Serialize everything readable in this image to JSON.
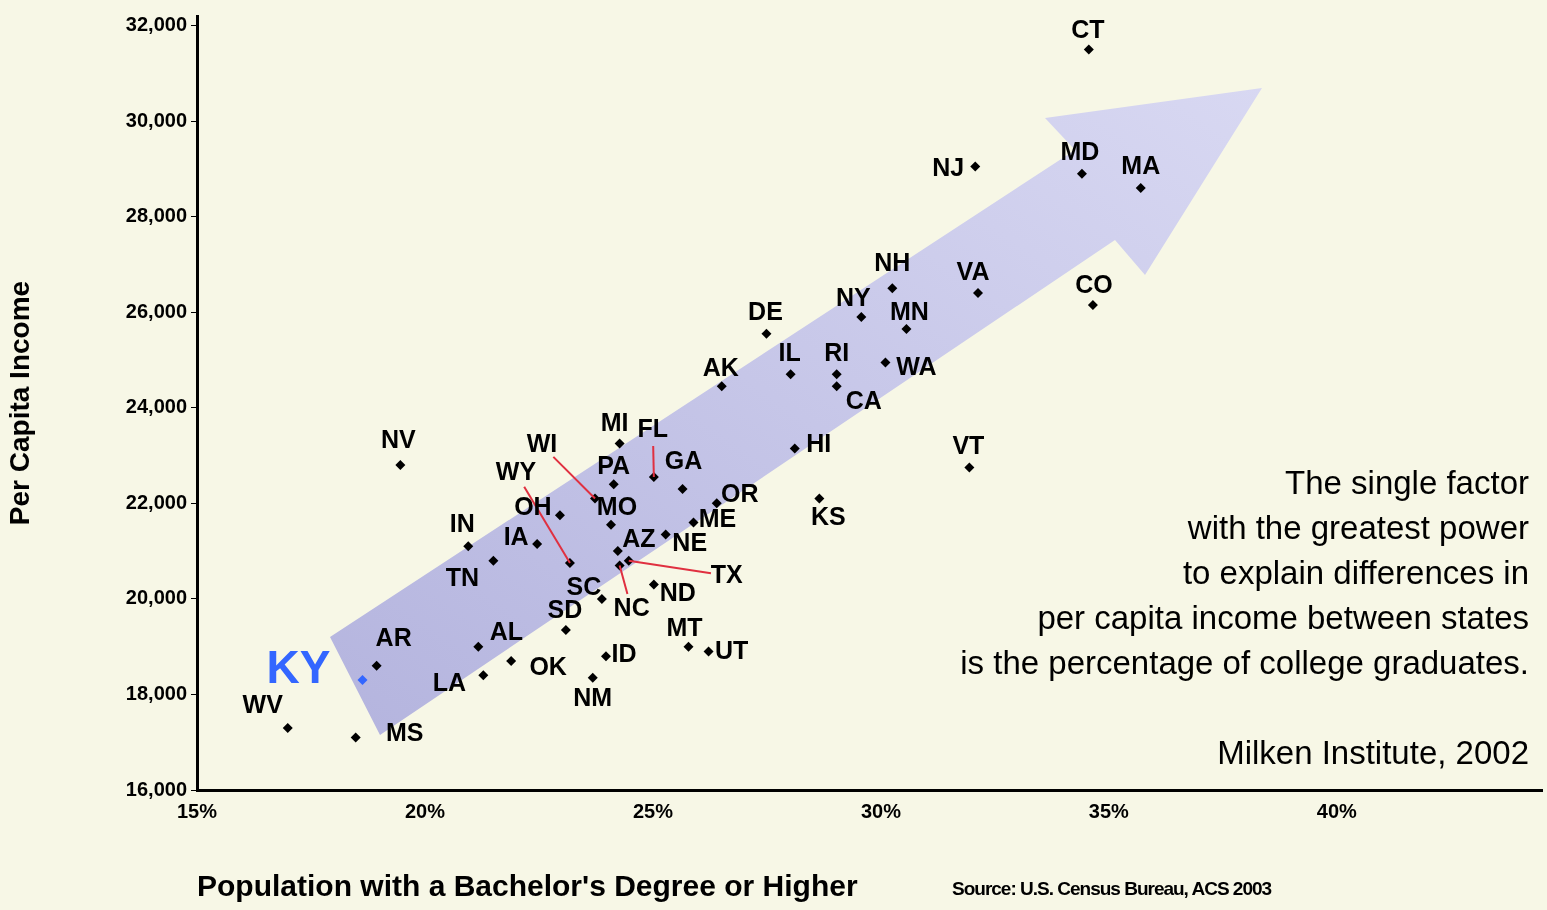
{
  "chart_data": {
    "type": "scatter",
    "xlabel": "Population with a Bachelor's Degree or Higher",
    "ylabel": "Per Capita Income",
    "xlim": [
      15,
      44.5
    ],
    "ylim": [
      16000,
      32200
    ],
    "xticks": [
      {
        "value": 15,
        "label": "15%"
      },
      {
        "value": 20,
        "label": "20%"
      },
      {
        "value": 25,
        "label": "25%"
      },
      {
        "value": 30,
        "label": "30%"
      },
      {
        "value": 35,
        "label": "35%"
      },
      {
        "value": 40,
        "label": "40%"
      }
    ],
    "yticks": [
      {
        "value": 16000,
        "label": "16,000"
      },
      {
        "value": 18000,
        "label": "18,000"
      },
      {
        "value": 20000,
        "label": "20,000"
      },
      {
        "value": 22000,
        "label": "22,000"
      },
      {
        "value": 24000,
        "label": "24,000"
      },
      {
        "value": 26000,
        "label": "26,000"
      },
      {
        "value": 28000,
        "label": "28,000"
      },
      {
        "value": 30000,
        "label": "30,000"
      },
      {
        "value": 32000,
        "label": "32,000"
      }
    ],
    "x": [
      34.56,
      34.41,
      35.7,
      32.07,
      30.25,
      32.13,
      34.65,
      29.57,
      30.56,
      27.49,
      28.02,
      29.03,
      30.1,
      29.03,
      26.51,
      28.11,
      31.94,
      28.65,
      19.46,
      23.73,
      23.18,
      24.27,
      25.02,
      24.14,
      25.65,
      22.96,
      24.08,
      20.95,
      22.46,
      26.4,
      25.89,
      24.23,
      25.28,
      21.5,
      24.47,
      23.88,
      24.27,
      25.02,
      23.09,
      21.17,
      18.94,
      18.63,
      21.28,
      21.89,
      23.97,
      23.68,
      25.78,
      26.22,
      16.99,
      18.48
    ],
    "values": [
      31500,
      28900,
      28600,
      29050,
      26500,
      26400,
      26150,
      25900,
      25650,
      25550,
      24700,
      24700,
      24950,
      24450,
      24450,
      23150,
      22750,
      22100,
      22800,
      22100,
      20750,
      23250,
      22550,
      22400,
      22300,
      21750,
      21550,
      21100,
      21150,
      22000,
      21600,
      21000,
      21350,
      20800,
      20800,
      20000,
      20700,
      20300,
      19350,
      19000,
      18600,
      18300,
      18400,
      18700,
      18800,
      18350,
      19000,
      18900,
      17300,
      17100
    ],
    "colors": [
      "#000000",
      "#000000",
      "#000000",
      "#000000",
      "#000000",
      "#000000",
      "#000000",
      "#000000",
      "#000000",
      "#000000",
      "#000000",
      "#000000",
      "#000000",
      "#000000",
      "#000000",
      "#000000",
      "#000000",
      "#000000",
      "#000000",
      "#000000",
      "#000000",
      "#000000",
      "#000000",
      "#000000",
      "#000000",
      "#000000",
      "#000000",
      "#000000",
      "#000000",
      "#000000",
      "#000000",
      "#000000",
      "#000000",
      "#000000",
      "#000000",
      "#000000",
      "#000000",
      "#000000",
      "#000000",
      "#000000",
      "#000000",
      "#3366ff",
      "#000000",
      "#000000",
      "#000000",
      "#000000",
      "#000000",
      "#000000",
      "#000000",
      "#000000"
    ],
    "marker": "diamond",
    "annotations": [
      {
        "text": "CT",
        "x": 34.56,
        "y": 31500
      },
      {
        "text": "MD",
        "x": 34.41,
        "y": 28900
      },
      {
        "text": "MA",
        "x": 35.7,
        "y": 28600
      },
      {
        "text": "NJ",
        "x": 32.07,
        "y": 29050
      },
      {
        "text": "NH",
        "x": 30.25,
        "y": 26500
      },
      {
        "text": "VA",
        "x": 32.13,
        "y": 26400
      },
      {
        "text": "CO",
        "x": 34.65,
        "y": 26150
      },
      {
        "text": "NY",
        "x": 29.57,
        "y": 25900
      },
      {
        "text": "MN",
        "x": 30.56,
        "y": 25650
      },
      {
        "text": "DE",
        "x": 27.49,
        "y": 25550
      },
      {
        "text": "IL",
        "x": 28.02,
        "y": 24700
      },
      {
        "text": "RI",
        "x": 29.03,
        "y": 24700
      },
      {
        "text": "WA",
        "x": 30.1,
        "y": 24950
      },
      {
        "text": "CA",
        "x": 29.03,
        "y": 24450
      },
      {
        "text": "AK",
        "x": 26.51,
        "y": 24450
      },
      {
        "text": "HI",
        "x": 28.11,
        "y": 23150
      },
      {
        "text": "VT",
        "x": 31.94,
        "y": 22750
      },
      {
        "text": "KS",
        "x": 28.65,
        "y": 22100
      },
      {
        "text": "NV",
        "x": 19.46,
        "y": 22800
      },
      {
        "text": "WI",
        "x": 23.73,
        "y": 22100
      },
      {
        "text": "WY",
        "x": 23.18,
        "y": 20750
      },
      {
        "text": "MI",
        "x": 24.27,
        "y": 23250
      },
      {
        "text": "FL",
        "x": 25.02,
        "y": 22550
      },
      {
        "text": "PA",
        "x": 24.14,
        "y": 22400
      },
      {
        "text": "GA",
        "x": 25.65,
        "y": 22300
      },
      {
        "text": "OH",
        "x": 22.96,
        "y": 21750
      },
      {
        "text": "MO",
        "x": 24.08,
        "y": 21550
      },
      {
        "text": "IN",
        "x": 20.95,
        "y": 21100
      },
      {
        "text": "IA",
        "x": 22.46,
        "y": 21150
      },
      {
        "text": "OR",
        "x": 26.4,
        "y": 22000
      },
      {
        "text": "ME",
        "x": 25.89,
        "y": 21600
      },
      {
        "text": "AZ",
        "x": 24.23,
        "y": 21000
      },
      {
        "text": "NE",
        "x": 25.28,
        "y": 21350
      },
      {
        "text": "TN",
        "x": 21.5,
        "y": 20800
      },
      {
        "text": "TX",
        "x": 24.47,
        "y": 20800
      },
      {
        "text": "SC",
        "x": 23.88,
        "y": 20000
      },
      {
        "text": "NC",
        "x": 24.27,
        "y": 20700
      },
      {
        "text": "ND",
        "x": 25.02,
        "y": 20300
      },
      {
        "text": "SD",
        "x": 23.09,
        "y": 19350
      },
      {
        "text": "AL",
        "x": 21.17,
        "y": 19000
      },
      {
        "text": "AR",
        "x": 18.94,
        "y": 18600
      },
      {
        "text": "KY",
        "x": 18.63,
        "y": 18300
      },
      {
        "text": "LA",
        "x": 21.28,
        "y": 18400
      },
      {
        "text": "OK",
        "x": 21.89,
        "y": 18700
      },
      {
        "text": "ID",
        "x": 23.97,
        "y": 18800
      },
      {
        "text": "NM",
        "x": 23.68,
        "y": 18350
      },
      {
        "text": "MT",
        "x": 25.78,
        "y": 19000
      },
      {
        "text": "UT",
        "x": 26.22,
        "y": 18900
      },
      {
        "text": "WV",
        "x": 16.99,
        "y": 17300
      },
      {
        "text": "MS",
        "x": 18.48,
        "y": 17100
      },
      "The single factor\nwith the greatest power\nto explain differences in\nper capita income between states\nis the percentage of college graduates.\n\nMilken Institute, 2002",
      "Source: U.S. Census Bureau, ACS 2003"
    ]
  }
}
